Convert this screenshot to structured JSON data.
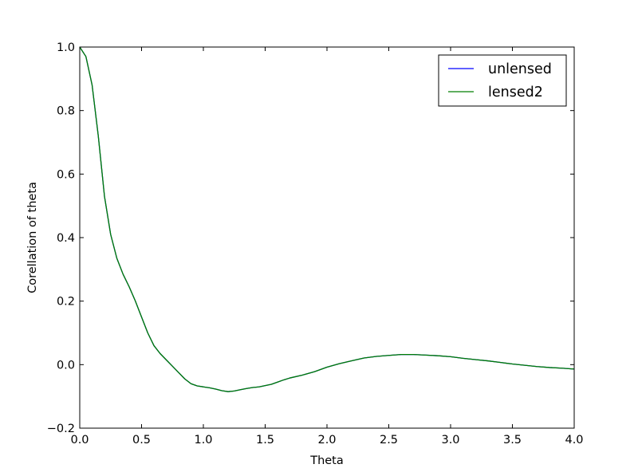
{
  "chart_data": {
    "type": "line",
    "title": "",
    "xlabel": "Theta",
    "ylabel": "Corellation of theta",
    "xlim": [
      0.0,
      4.0
    ],
    "ylim": [
      -0.2,
      1.0
    ],
    "xticks": [
      0.0,
      0.5,
      1.0,
      1.5,
      2.0,
      2.5,
      3.0,
      3.5,
      4.0
    ],
    "xtick_labels": [
      "0.0",
      "0.5",
      "1.0",
      "1.5",
      "2.0",
      "2.5",
      "3.0",
      "3.5",
      "4.0"
    ],
    "yticks": [
      -0.2,
      0.0,
      0.2,
      0.4,
      0.6,
      0.8,
      1.0
    ],
    "ytick_labels": [
      "−0.2",
      "0.0",
      "0.2",
      "0.4",
      "0.6",
      "0.8",
      "1.0"
    ],
    "grid": false,
    "legend": "top-right",
    "series": [
      {
        "name": "unlensed",
        "color": "#0000ff",
        "x": [
          0.0,
          0.05,
          0.1,
          0.15,
          0.2,
          0.25,
          0.3,
          0.35,
          0.4,
          0.45,
          0.5,
          0.55,
          0.6,
          0.65,
          0.7,
          0.75,
          0.8,
          0.85,
          0.9,
          0.95,
          1.0,
          1.05,
          1.1,
          1.15,
          1.2,
          1.25,
          1.3,
          1.35,
          1.4,
          1.45,
          1.5,
          1.55,
          1.6,
          1.65,
          1.7,
          1.8,
          1.9,
          2.0,
          2.1,
          2.2,
          2.3,
          2.4,
          2.5,
          2.6,
          2.7,
          2.8,
          2.9,
          3.0,
          3.1,
          3.2,
          3.3,
          3.4,
          3.5,
          3.6,
          3.7,
          3.8,
          3.9,
          4.0
        ],
        "y": [
          1.0,
          0.97,
          0.88,
          0.72,
          0.53,
          0.41,
          0.335,
          0.285,
          0.245,
          0.2,
          0.15,
          0.1,
          0.06,
          0.035,
          0.015,
          -0.005,
          -0.025,
          -0.045,
          -0.06,
          -0.067,
          -0.07,
          -0.073,
          -0.077,
          -0.082,
          -0.085,
          -0.083,
          -0.079,
          -0.075,
          -0.072,
          -0.07,
          -0.066,
          -0.062,
          -0.055,
          -0.048,
          -0.042,
          -0.033,
          -0.022,
          -0.008,
          0.003,
          0.012,
          0.021,
          0.026,
          0.029,
          0.032,
          0.032,
          0.03,
          0.028,
          0.025,
          0.02,
          0.016,
          0.012,
          0.007,
          0.002,
          -0.002,
          -0.006,
          -0.009,
          -0.011,
          -0.014
        ]
      },
      {
        "name": "lensed2",
        "color": "#007f00",
        "x": [
          0.0,
          0.05,
          0.1,
          0.15,
          0.2,
          0.25,
          0.3,
          0.35,
          0.4,
          0.45,
          0.5,
          0.55,
          0.6,
          0.65,
          0.7,
          0.75,
          0.8,
          0.85,
          0.9,
          0.95,
          1.0,
          1.05,
          1.1,
          1.15,
          1.2,
          1.25,
          1.3,
          1.35,
          1.4,
          1.45,
          1.5,
          1.55,
          1.6,
          1.65,
          1.7,
          1.8,
          1.9,
          2.0,
          2.1,
          2.2,
          2.3,
          2.4,
          2.5,
          2.6,
          2.7,
          2.8,
          2.9,
          3.0,
          3.1,
          3.2,
          3.3,
          3.4,
          3.5,
          3.6,
          3.7,
          3.8,
          3.9,
          4.0
        ],
        "y": [
          1.0,
          0.97,
          0.88,
          0.72,
          0.53,
          0.41,
          0.335,
          0.285,
          0.245,
          0.2,
          0.15,
          0.1,
          0.06,
          0.035,
          0.015,
          -0.005,
          -0.025,
          -0.045,
          -0.06,
          -0.067,
          -0.07,
          -0.073,
          -0.077,
          -0.082,
          -0.085,
          -0.083,
          -0.079,
          -0.075,
          -0.072,
          -0.07,
          -0.066,
          -0.062,
          -0.055,
          -0.048,
          -0.042,
          -0.033,
          -0.022,
          -0.008,
          0.003,
          0.012,
          0.021,
          0.026,
          0.029,
          0.032,
          0.032,
          0.03,
          0.028,
          0.025,
          0.02,
          0.016,
          0.012,
          0.007,
          0.002,
          -0.002,
          -0.006,
          -0.009,
          -0.011,
          -0.014
        ]
      }
    ]
  }
}
